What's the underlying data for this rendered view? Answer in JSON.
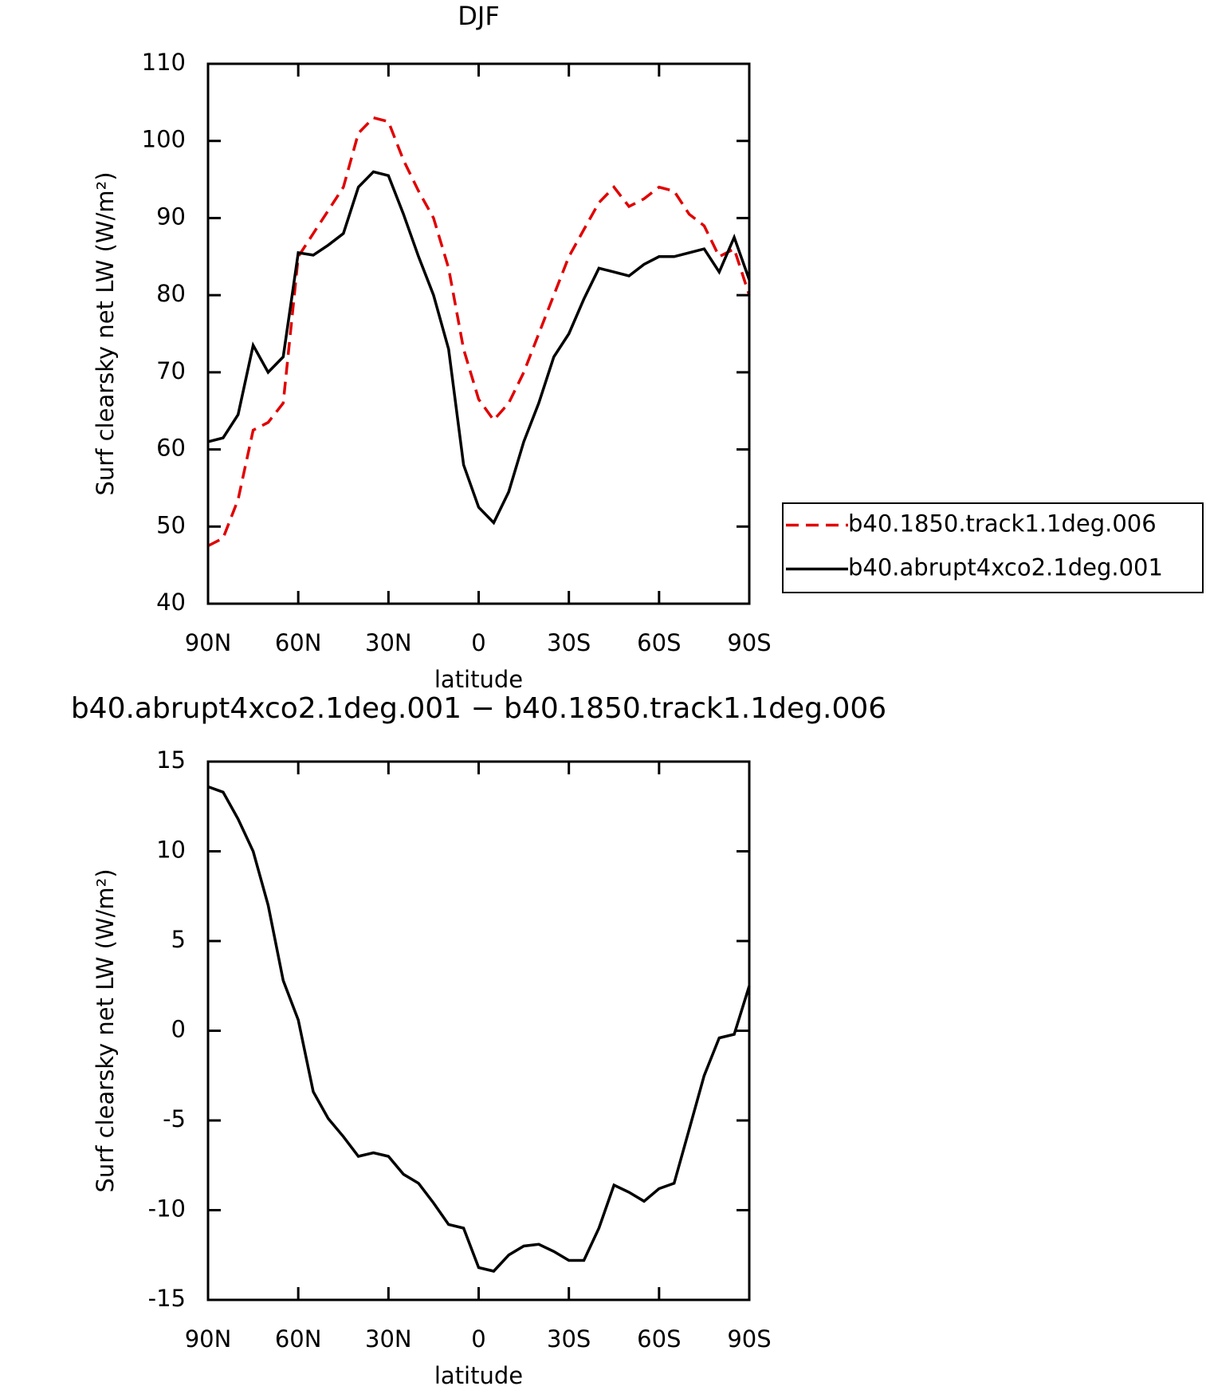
{
  "chart_data": [
    {
      "type": "line",
      "title": "DJF",
      "xlabel": "latitude",
      "ylabel": "Surf clearsky net LW (W/m²)",
      "x": [
        90,
        85,
        80,
        75,
        70,
        65,
        60,
        55,
        50,
        45,
        40,
        35,
        30,
        25,
        20,
        15,
        10,
        5,
        0,
        -5,
        -10,
        -15,
        -20,
        -25,
        -30,
        -35,
        -40,
        -45,
        -50,
        -55,
        -60,
        -65,
        -70,
        -75,
        -80,
        -85,
        -90
      ],
      "xlim": [
        90,
        -90
      ],
      "xticks": [
        {
          "value": 90,
          "label": "90N"
        },
        {
          "value": 60,
          "label": "60N"
        },
        {
          "value": 30,
          "label": "30N"
        },
        0,
        {
          "value": -30,
          "label": "30S"
        },
        {
          "value": -60,
          "label": "60S"
        },
        {
          "value": -90,
          "label": "90S"
        }
      ],
      "ylim": [
        40,
        110
      ],
      "yticks": [
        40,
        50,
        60,
        70,
        80,
        90,
        100,
        110
      ],
      "legend": "right",
      "series": [
        {
          "name": "b40.1850.track1.1deg.006",
          "color": "#e00000",
          "line_style": "dashed",
          "values": [
            47.5,
            48.5,
            53.5,
            62.5,
            63.5,
            66,
            85,
            88,
            91,
            94,
            101,
            103,
            102.5,
            97.5,
            93.5,
            90,
            83.5,
            73,
            66.5,
            63.8,
            66,
            70,
            75,
            80,
            85,
            88.5,
            92,
            94,
            91.5,
            92.5,
            94,
            93.5,
            90.5,
            89,
            85,
            86,
            80
          ]
        },
        {
          "name": "b40.abrupt4xco2.1deg.001",
          "color": "#000000",
          "line_style": "solid",
          "values": [
            61,
            61.5,
            64.5,
            73.5,
            70,
            72,
            85.5,
            85.2,
            86.5,
            88,
            94,
            96,
            95.5,
            90.5,
            85,
            80,
            73,
            58,
            52.5,
            50.5,
            54.5,
            61,
            66,
            72,
            75,
            79.5,
            83.5,
            83,
            82.5,
            84,
            85,
            85,
            85.5,
            86,
            83,
            87.5,
            82
          ]
        }
      ]
    },
    {
      "type": "line",
      "title": "b40.abrupt4xco2.1deg.001 − b40.1850.track1.1deg.006",
      "xlabel": "latitude",
      "ylabel": "Surf clearsky net LW (W/m²)",
      "x": [
        90,
        85,
        80,
        75,
        70,
        65,
        60,
        55,
        50,
        45,
        40,
        35,
        30,
        25,
        20,
        15,
        10,
        5,
        0,
        -5,
        -10,
        -15,
        -20,
        -25,
        -30,
        -35,
        -40,
        -45,
        -50,
        -55,
        -60,
        -65,
        -70,
        -75,
        -80,
        -85,
        -90
      ],
      "xlim": [
        90,
        -90
      ],
      "xticks": [
        {
          "value": 90,
          "label": "90N"
        },
        {
          "value": 60,
          "label": "60N"
        },
        {
          "value": 30,
          "label": "30N"
        },
        0,
        {
          "value": -30,
          "label": "30S"
        },
        {
          "value": -60,
          "label": "60S"
        },
        {
          "value": -90,
          "label": "90S"
        }
      ],
      "ylim": [
        -15,
        15
      ],
      "yticks": [
        -15,
        -10,
        -5,
        0,
        5,
        10,
        15
      ],
      "series": [
        {
          "color": "#000000",
          "line_style": "solid",
          "values": [
            13.6,
            13.3,
            11.8,
            10,
            7,
            2.8,
            0.6,
            -3.4,
            -4.9,
            -5.9,
            -7,
            -6.8,
            -7,
            -8,
            -8.5,
            -9.6,
            -10.8,
            -11,
            -13.2,
            -13.4,
            -12.5,
            -12,
            -11.9,
            -12.3,
            -12.8,
            -12.8,
            -11,
            -8.6,
            -9,
            -9.5,
            -8.8,
            -8.5,
            -5.5,
            -2.5,
            -0.4,
            -0.2,
            2.5
          ]
        }
      ]
    }
  ]
}
